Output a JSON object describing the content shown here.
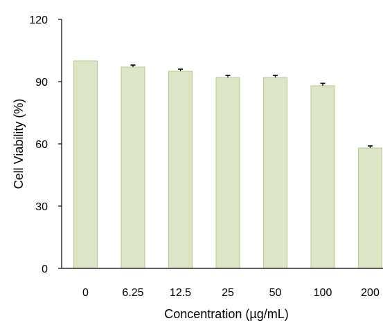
{
  "chart_data": {
    "type": "bar",
    "title": "",
    "xlabel": "Concentration (µg/mL)",
    "ylabel": "Cell Viability (%)",
    "categories": [
      "0",
      "6.25",
      "12.5",
      "25",
      "50",
      "100",
      "200"
    ],
    "values": [
      100,
      97,
      95,
      92,
      92,
      88,
      58
    ],
    "errors": [
      0,
      1,
      1,
      1,
      1,
      1.2,
      1
    ],
    "ylim": [
      0,
      120
    ],
    "yticks": [
      0,
      30,
      60,
      90,
      120
    ],
    "grid": false,
    "legend": "none",
    "colors": {
      "bar_fill": "#dce6c7",
      "bar_stroke": "#b5c98a",
      "error_bar": "#000000",
      "axis": "#000000"
    }
  }
}
